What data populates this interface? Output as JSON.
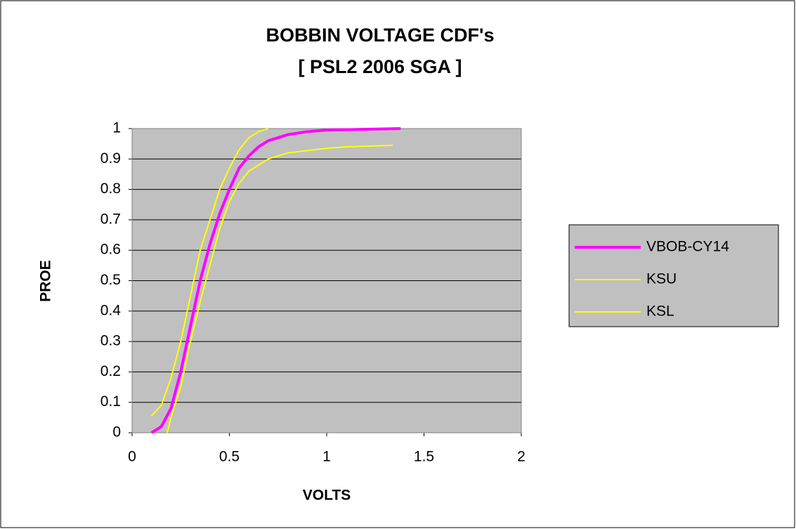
{
  "chart_data": {
    "type": "line",
    "title": "BOBBIN VOLTAGE CDF's",
    "subtitle": "[ PSL2 2006 SGA ]",
    "x_label": "VOLTS",
    "y_label": "PROE",
    "xlim": [
      0,
      2
    ],
    "xticks": [
      0,
      0.5,
      1,
      1.5,
      2
    ],
    "ylim": [
      0,
      1
    ],
    "yticks": [
      0,
      0.1,
      0.2,
      0.3,
      0.4,
      0.5,
      0.6,
      0.7,
      0.8,
      0.9,
      1
    ],
    "grid": true,
    "legend": "right",
    "plot_background": "#c0c0c0",
    "series": [
      {
        "name": "VBOB-CY14",
        "color": "#ff00ff",
        "line_width": 4,
        "x": [
          0.1,
          0.15,
          0.2,
          0.25,
          0.3,
          0.35,
          0.4,
          0.45,
          0.5,
          0.55,
          0.6,
          0.65,
          0.7,
          0.8,
          0.9,
          1.0,
          1.38
        ],
        "values": [
          0,
          0.02,
          0.08,
          0.2,
          0.35,
          0.5,
          0.62,
          0.72,
          0.8,
          0.87,
          0.91,
          0.94,
          0.96,
          0.98,
          0.99,
          0.995,
          1
        ]
      },
      {
        "name": "KSU",
        "color": "#ffff00",
        "line_width": 2,
        "x": [
          0.1,
          0.15,
          0.2,
          0.25,
          0.3,
          0.35,
          0.4,
          0.45,
          0.5,
          0.55,
          0.6,
          0.65,
          0.7
        ],
        "values": [
          0.055,
          0.09,
          0.18,
          0.3,
          0.45,
          0.6,
          0.7,
          0.8,
          0.87,
          0.93,
          0.97,
          0.99,
          1
        ]
      },
      {
        "name": "KSL",
        "color": "#ffff00",
        "line_width": 2,
        "x": [
          0.18,
          0.2,
          0.25,
          0.3,
          0.35,
          0.4,
          0.45,
          0.5,
          0.55,
          0.6,
          0.7,
          0.8,
          1.0,
          1.1,
          1.34
        ],
        "values": [
          0,
          0.05,
          0.15,
          0.3,
          0.43,
          0.55,
          0.67,
          0.76,
          0.82,
          0.86,
          0.9,
          0.92,
          0.935,
          0.94,
          0.945
        ]
      }
    ]
  }
}
